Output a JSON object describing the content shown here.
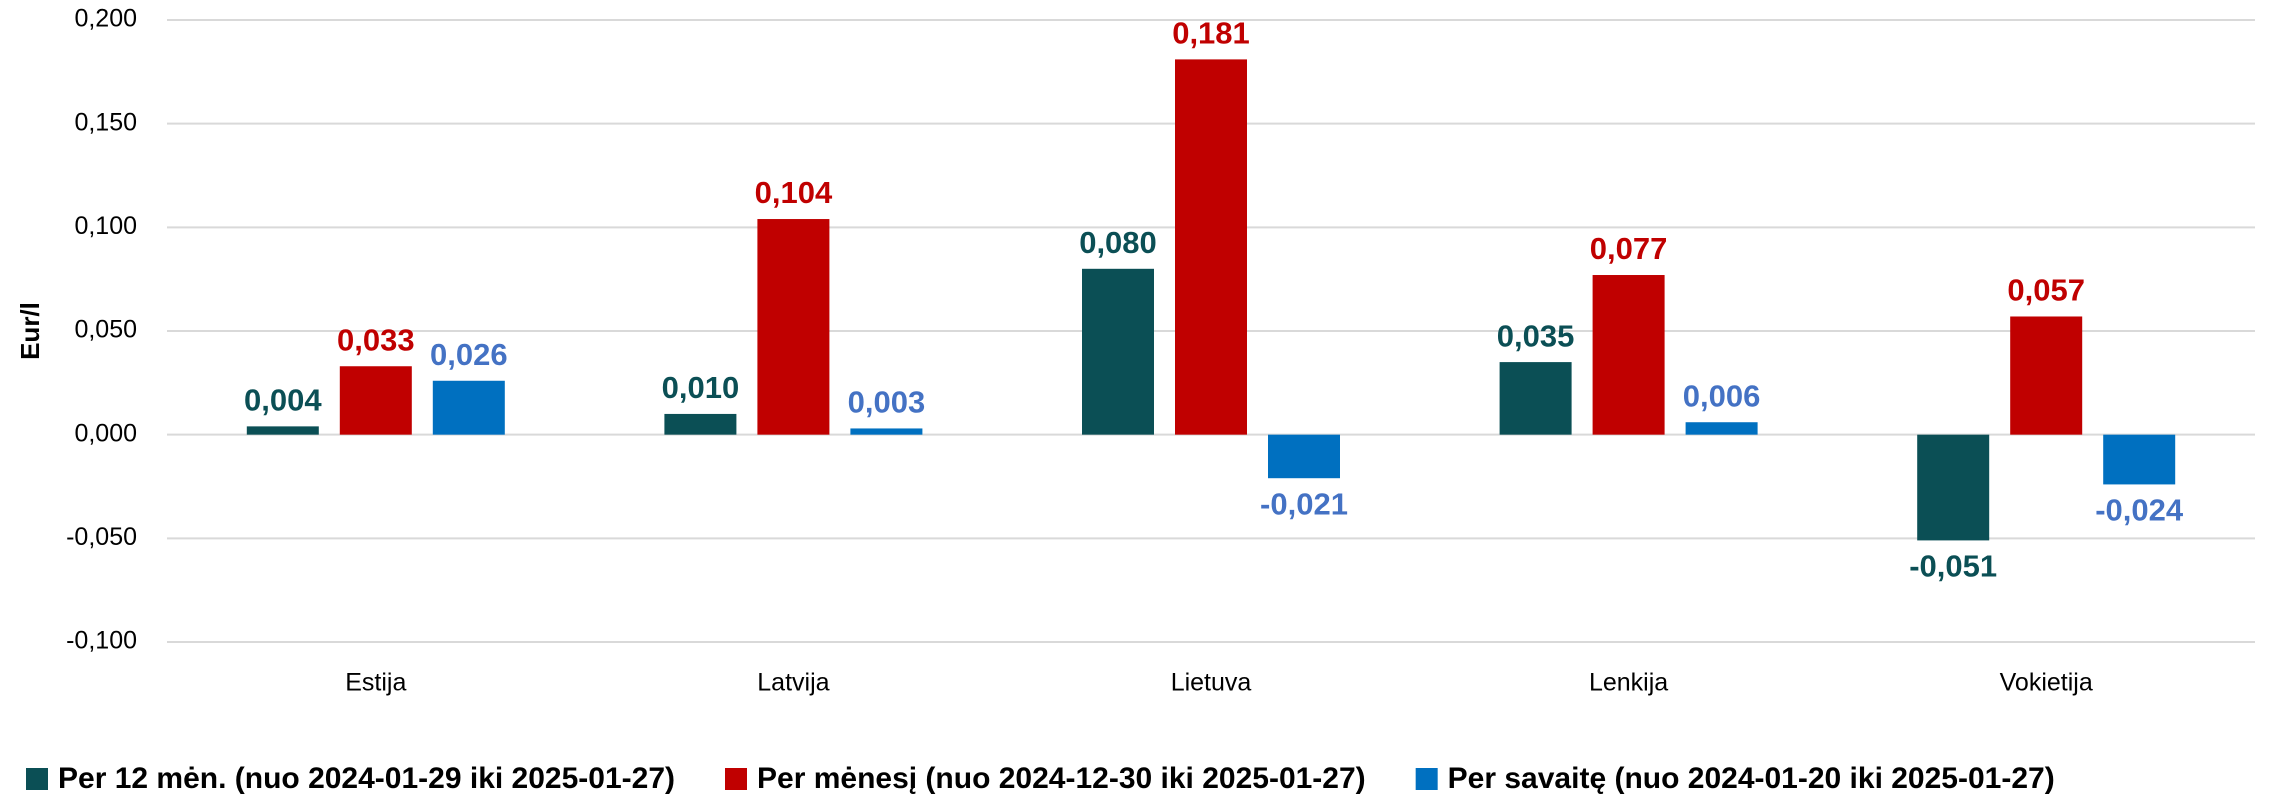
{
  "chart_data": {
    "type": "bar",
    "y_axis_label": "Eur/l",
    "categories": [
      "Estija",
      "Latvija",
      "Lietuva",
      "Lenkija",
      "Vokietija"
    ],
    "series": [
      {
        "name": "Per 12 mėn. (nuo 2024-01-29 iki 2025-01-27)",
        "color": "#0b4f55",
        "label_color": "#0b4f55",
        "values": [
          0.004,
          0.01,
          0.08,
          0.035,
          -0.051
        ],
        "value_labels": [
          "0,004",
          "0,010",
          "0,080",
          "0,035",
          "-0,051"
        ]
      },
      {
        "name": "Per mėnesį (nuo 2024-12-30 iki 2025-01-27)",
        "color": "#c00000",
        "label_color": "#c00000",
        "values": [
          0.033,
          0.104,
          0.181,
          0.077,
          0.057
        ],
        "value_labels": [
          "0,033",
          "0,104",
          "0,181",
          "0,077",
          "0,057"
        ]
      },
      {
        "name": "Per savaitę (nuo 2024-01-20 iki 2025-01-27)",
        "color": "#0070c0",
        "label_color": "#4472c4",
        "values": [
          0.026,
          0.003,
          -0.021,
          0.006,
          -0.024
        ],
        "value_labels": [
          "0,026",
          "0,003",
          "-0,021",
          "0,006",
          "-0,024"
        ]
      }
    ],
    "ylim": [
      -0.1,
      0.2
    ],
    "yticks": [
      {
        "value": -0.1,
        "label": "-0,100"
      },
      {
        "value": -0.05,
        "label": "-0,050"
      },
      {
        "value": 0,
        "label": "0,000"
      },
      {
        "value": 0.05,
        "label": "0,050"
      },
      {
        "value": 0.1,
        "label": "0,100"
      },
      {
        "value": 0.15,
        "label": "0,150"
      },
      {
        "value": 0.2,
        "label": "0,200"
      }
    ],
    "grid": true
  }
}
